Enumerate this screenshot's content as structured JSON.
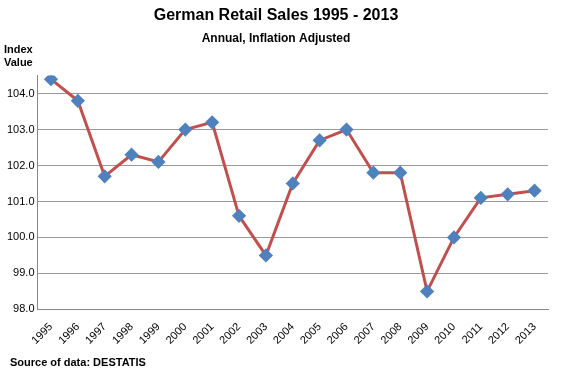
{
  "chart_data": {
    "type": "line",
    "title": "German Retail Sales 1995 - 2013",
    "subtitle": "Annual, Inflation Adjusted",
    "y_label": "Index Value",
    "source": "Source of data: DESTATIS",
    "categories": [
      "1995",
      "1996",
      "1997",
      "1998",
      "1999",
      "2000",
      "2001",
      "2002",
      "2003",
      "2004",
      "2005",
      "2006",
      "2007",
      "2008",
      "2009",
      "2010",
      "2011",
      "2012",
      "2013"
    ],
    "values": [
      104.4,
      103.8,
      101.7,
      102.3,
      102.1,
      103.0,
      103.2,
      100.6,
      99.5,
      101.5,
      102.7,
      103.0,
      101.8,
      101.8,
      98.5,
      100.0,
      101.1,
      101.2,
      101.3
    ],
    "color": "#c0504d",
    "marker": "diamond",
    "line_style": "solid",
    "ylim": [
      98,
      104.5
    ],
    "yticks": [
      {
        "value": 98,
        "label": "98.0"
      },
      {
        "value": 99,
        "label": "99.0"
      },
      {
        "value": 100,
        "label": "100.0"
      },
      {
        "value": 101,
        "label": "101.0"
      },
      {
        "value": 102,
        "label": "102.0"
      },
      {
        "value": 103,
        "label": "103.0"
      },
      {
        "value": 104,
        "label": "104.0"
      }
    ],
    "grid": true
  }
}
